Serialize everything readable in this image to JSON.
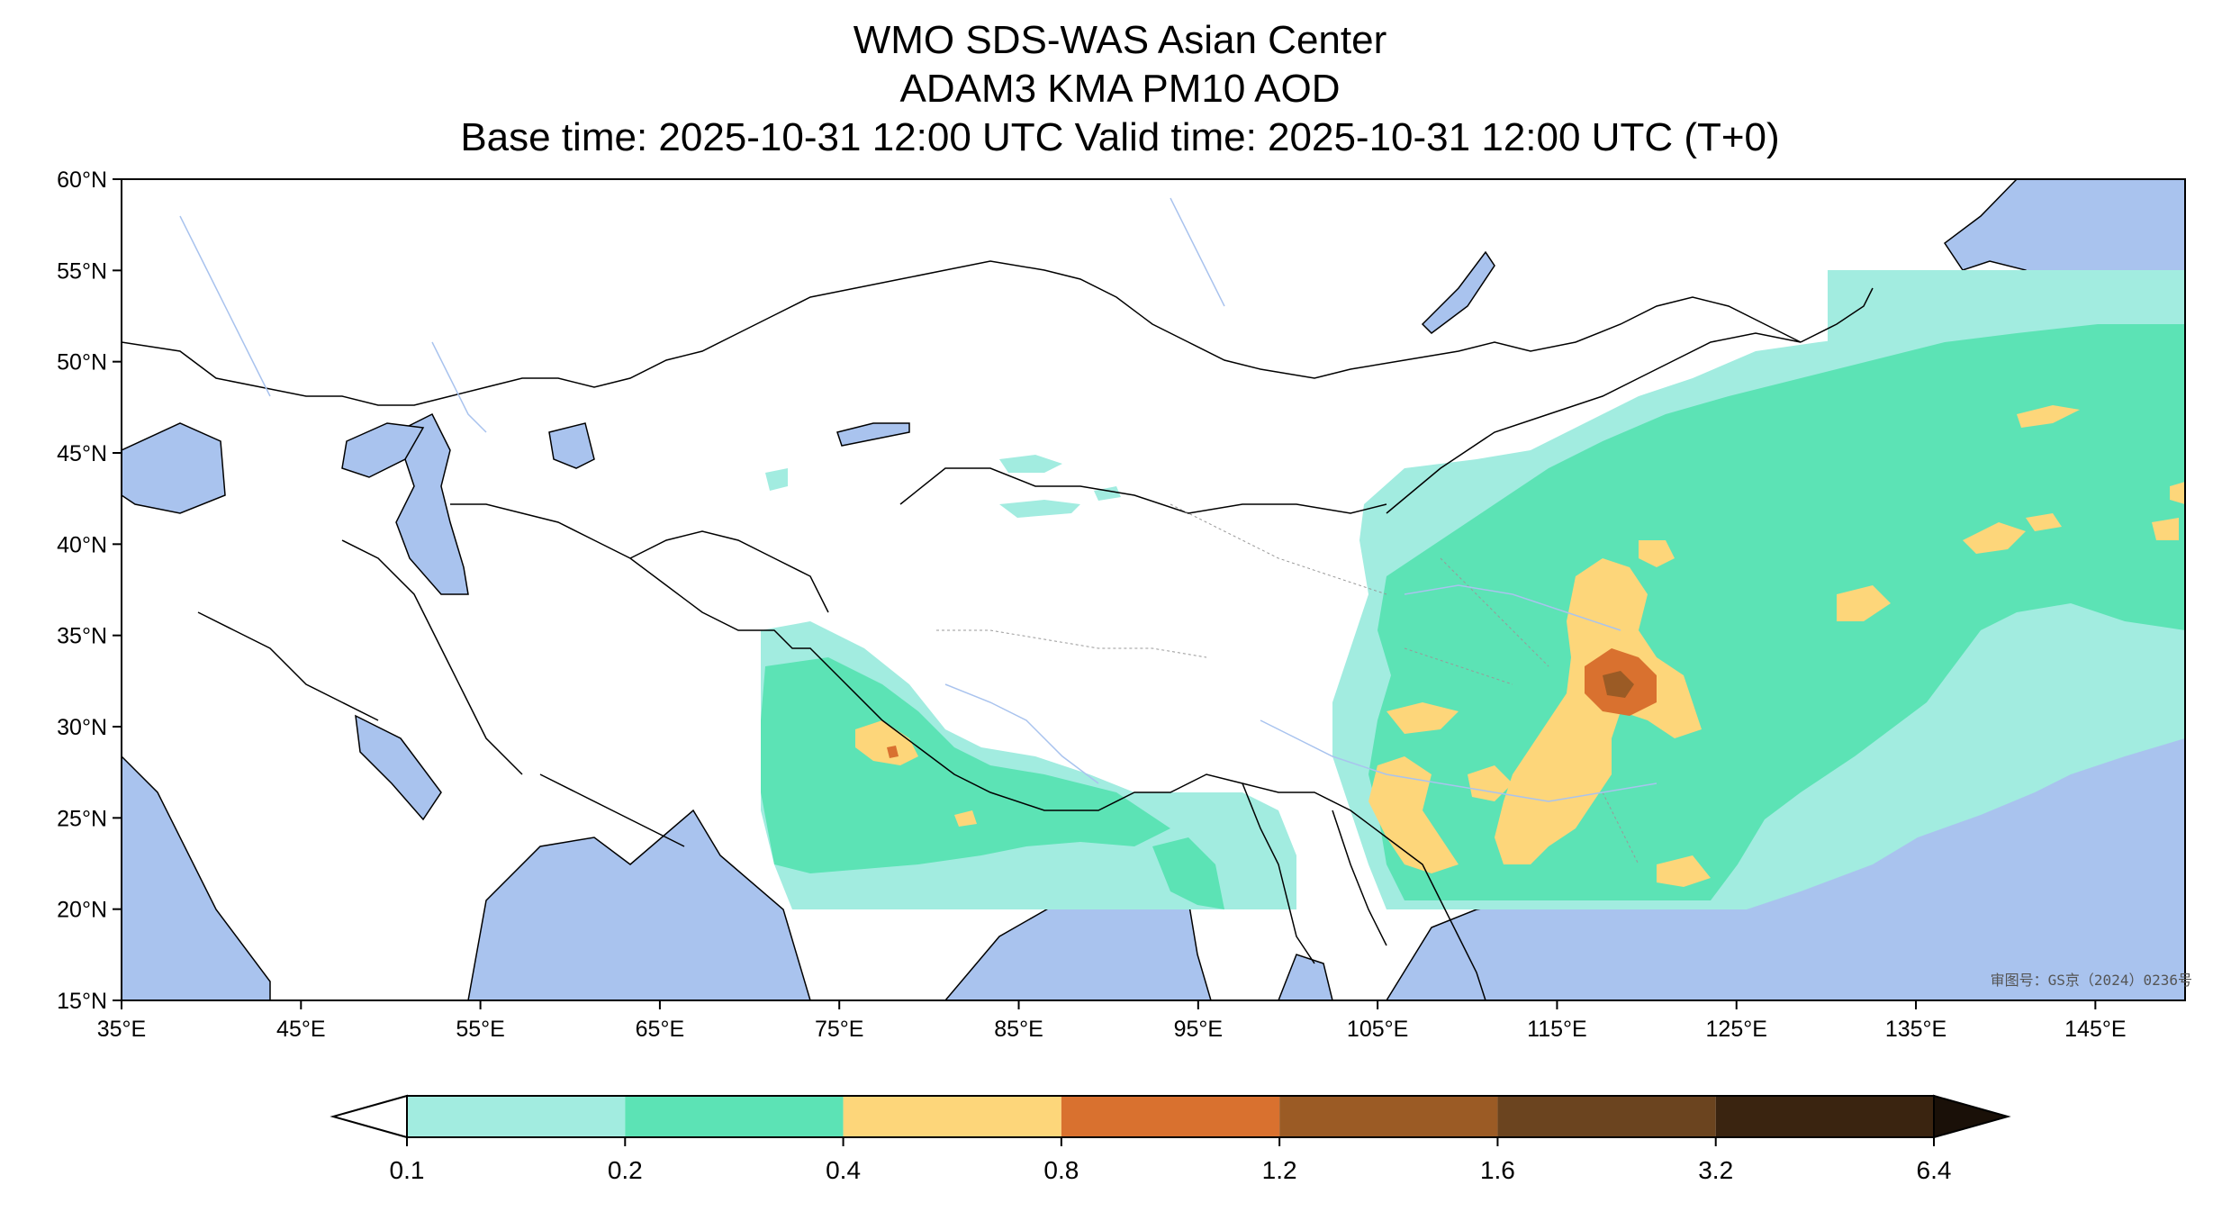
{
  "title": {
    "line1": "WMO SDS-WAS Asian Center",
    "line2": "ADAM3 KMA PM10 AOD",
    "line3": "Base time: 2025-10-31 12:00 UTC Valid time: 2025-10-31 12:00 UTC (T+0)"
  },
  "map_extent": {
    "lon": [
      35,
      150
    ],
    "lat": [
      15,
      60
    ]
  },
  "axes": {
    "lon_ticks": [
      "35°E",
      "45°E",
      "55°E",
      "65°E",
      "75°E",
      "85°E",
      "95°E",
      "105°E",
      "115°E",
      "125°E",
      "135°E",
      "145°E"
    ],
    "lon_values": [
      35,
      45,
      55,
      65,
      75,
      85,
      95,
      105,
      115,
      125,
      135,
      145
    ],
    "lat_ticks": [
      "60°N",
      "55°N",
      "50°N",
      "45°N",
      "40°N",
      "35°N",
      "30°N",
      "25°N",
      "20°N",
      "15°N"
    ],
    "lat_values": [
      60,
      55,
      50,
      45,
      40,
      35,
      30,
      25,
      20,
      15
    ]
  },
  "colorbar": {
    "levels": [
      "0.1",
      "0.2",
      "0.4",
      "0.8",
      "1.2",
      "1.6",
      "3.2",
      "6.4"
    ],
    "colors": [
      "#a2ece0",
      "#5ce3b5",
      "#fdd67a",
      "#d9712f",
      "#9b5b25",
      "#6b441f",
      "#3a2410"
    ],
    "extend": "both"
  },
  "colors": {
    "ocean": "#a9c3ee",
    "land": "#ffffff",
    "border": "#000000",
    "river": "#a9c3ee"
  },
  "watermark": "审图号：GS京（2024）0236号"
}
